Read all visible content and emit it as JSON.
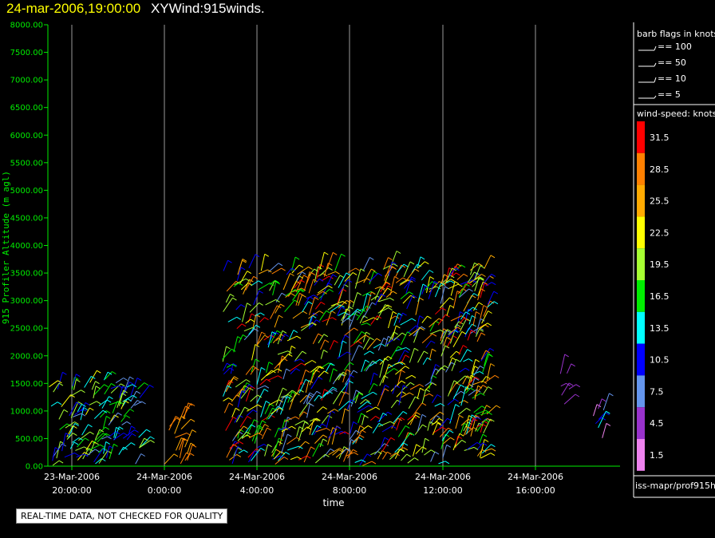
{
  "header": {
    "date_label": "24-mar-2006,19:00:00",
    "product_label": "XYWind:915winds."
  },
  "qc_note": "REAL-TIME DATA, NOT CHECKED FOR QUALITY",
  "source_label": "iss-mapr/prof915h",
  "legend": {
    "barb_title": "barb flags in knots",
    "barbs": [
      "== 100",
      "== 50",
      "== 10",
      "== 5"
    ],
    "speed_title": "wind-speed: knots",
    "speed_bins": [
      {
        "label": "31.5",
        "color": "#ff0000"
      },
      {
        "label": "28.5",
        "color": "#ff8000"
      },
      {
        "label": "25.5",
        "color": "#ffaa00"
      },
      {
        "label": "22.5",
        "color": "#ffff00"
      },
      {
        "label": "19.5",
        "color": "#a6ff32"
      },
      {
        "label": "16.5",
        "color": "#00ee00"
      },
      {
        "label": "13.5",
        "color": "#00ffff"
      },
      {
        "label": "10.5",
        "color": "#0000ff"
      },
      {
        "label": "7.5",
        "color": "#6495ed"
      },
      {
        "label": "4.5",
        "color": "#9932cc"
      },
      {
        "label": "1.5",
        "color": "#ee82ee"
      }
    ]
  },
  "chart_data": {
    "type": "scatter",
    "ylabel": "915 Profiler Altitude (m agl)",
    "xlabel": "time",
    "ylim": [
      0,
      8000
    ],
    "y_ticks": [
      "0.00",
      "500.00",
      "1000.00",
      "1500.00",
      "2000.00",
      "2500.00",
      "3000.00",
      "3500.00",
      "4000.00",
      "4500.00",
      "5000.00",
      "5500.00",
      "6000.00",
      "6500.00",
      "7000.00",
      "7500.00",
      "8000.00"
    ],
    "x_ticks": [
      {
        "date": "23-Mar-2006",
        "time": "20:00:00"
      },
      {
        "date": "24-Mar-2006",
        "time": "0:00:00"
      },
      {
        "date": "24-Mar-2006",
        "time": "4:00:00"
      },
      {
        "date": "24-Mar-2006",
        "time": "8:00:00"
      },
      {
        "date": "24-Mar-2006",
        "time": "12:00:00"
      },
      {
        "date": "24-Mar-2006",
        "time": "16:00:00"
      }
    ],
    "grid": "vertical",
    "wind_barb_clusters": [
      {
        "from": "23-Mar-2006 19:00",
        "to": "23-Mar-2006 23:00",
        "alt_min_m": 0,
        "alt_max_m": 1600,
        "speed_kt": [
          7.5,
          22.5
        ]
      },
      {
        "from": "24-Mar-2006 00:00",
        "to": "24-Mar-2006 01:00",
        "alt_min_m": 0,
        "alt_max_m": 1000,
        "speed_kt": [
          25.5,
          28.5
        ]
      },
      {
        "from": "24-Mar-2006 02:30",
        "to": "24-Mar-2006 14:00",
        "alt_min_m": 0,
        "alt_max_m": 3600,
        "speed_kt": [
          7.5,
          31.5
        ]
      },
      {
        "from": "24-Mar-2006 17:00",
        "to": "24-Mar-2006 17:30",
        "alt_min_m": 1100,
        "alt_max_m": 1700,
        "speed_kt": [
          4.5,
          7.5
        ]
      },
      {
        "from": "24-Mar-2006 18:30",
        "to": "24-Mar-2006 19:00",
        "alt_min_m": 300,
        "alt_max_m": 1100,
        "speed_kt": [
          1.5,
          13.5
        ]
      }
    ]
  }
}
